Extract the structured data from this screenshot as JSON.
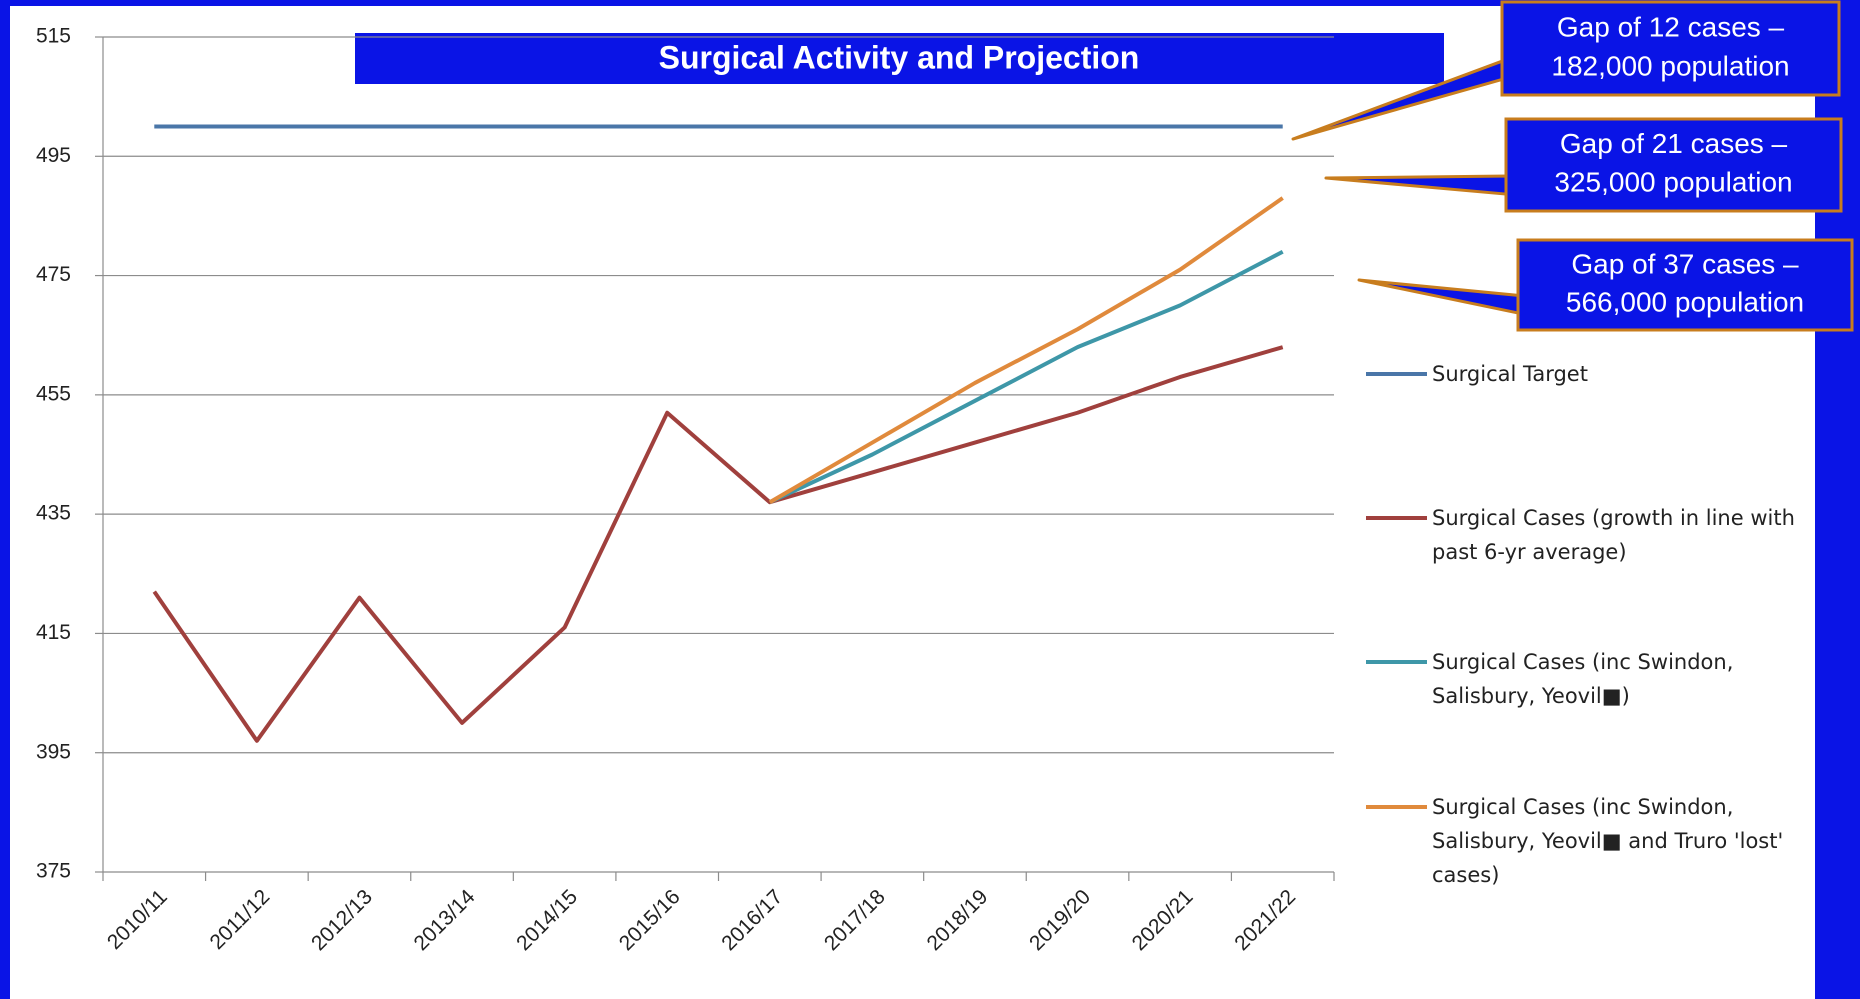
{
  "chart_data": {
    "type": "line",
    "title": "Surgical Activity and Projection",
    "categories": [
      "2010/11",
      "2011/12",
      "2012/13",
      "2013/14",
      "2014/15",
      "2015/16",
      "2016/17",
      "2017/18",
      "2018/19",
      "2019/20",
      "2020/21",
      "2021/22"
    ],
    "series": [
      {
        "name": "Surgical Target",
        "color": "#4a76a8",
        "values": [
          500,
          500,
          500,
          500,
          500,
          500,
          500,
          500,
          500,
          500,
          500,
          500
        ]
      },
      {
        "name": "Surgical Cases (growth in line with past 6-yr average)",
        "color": "#a0403d",
        "values": [
          422,
          397,
          421,
          400,
          416,
          452,
          437,
          442,
          447,
          452,
          458,
          463
        ]
      },
      {
        "name": "Surgical Cases (inc Swindon, Salisbury, Yeovil■)",
        "color": "#3e97a8",
        "values": [
          null,
          null,
          null,
          null,
          null,
          null,
          437,
          445,
          454,
          463,
          470,
          479
        ]
      },
      {
        "name": "Surgical Cases (inc Swindon, Salisbury, Yeovil■ and Truro 'lost' cases)",
        "color": "#e08a3c",
        "values": [
          null,
          null,
          null,
          null,
          null,
          null,
          437,
          447,
          457,
          466,
          476,
          488
        ]
      }
    ],
    "ylim": [
      375,
      515
    ],
    "yticks": [
      375,
      395,
      415,
      435,
      455,
      475,
      495,
      515
    ],
    "grid": true,
    "legend": "right",
    "annotations": [
      {
        "lines": [
          "Gap of 12 cases –",
          "182,000 population"
        ]
      },
      {
        "lines": [
          "Gap of 21 cases –",
          "325,000 population"
        ]
      },
      {
        "lines": [
          "Gap of 37 cases –",
          "566,000 population"
        ]
      }
    ]
  }
}
